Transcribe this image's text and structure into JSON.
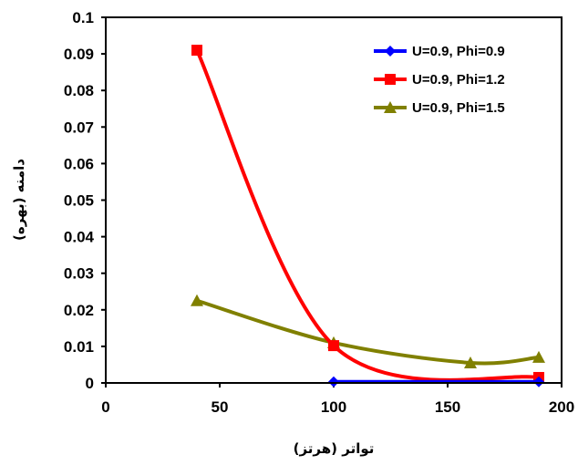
{
  "chart_data": {
    "type": "line",
    "xlabel": "تواتر (هرتز)",
    "ylabel": "دامنه (بهره)",
    "xlim": [
      0,
      200
    ],
    "ylim": [
      0,
      0.1
    ],
    "x_ticks": [
      0,
      50,
      100,
      150,
      200
    ],
    "y_ticks": [
      0,
      0.01,
      0.02,
      0.03,
      0.04,
      0.05,
      0.06,
      0.07,
      0.08,
      0.09,
      0.1
    ],
    "grid": false,
    "legend_position": "top-right",
    "smooth": true,
    "series": [
      {
        "name": "U=0.9, Phi=0.9",
        "color": "#0000ff",
        "marker": "diamond",
        "x": [
          100,
          190
        ],
        "y": [
          0.0003,
          0.0003
        ]
      },
      {
        "name": "U=0.9, Phi=1.2",
        "color": "#ff0000",
        "marker": "square",
        "x": [
          40,
          100,
          190
        ],
        "y": [
          0.091,
          0.0102,
          0.0015
        ]
      },
      {
        "name": "U=0.9, Phi=1.5",
        "color": "#808000",
        "marker": "triangle",
        "x": [
          40,
          100,
          160,
          190
        ],
        "y": [
          0.0225,
          0.011,
          0.0055,
          0.007
        ]
      }
    ]
  }
}
